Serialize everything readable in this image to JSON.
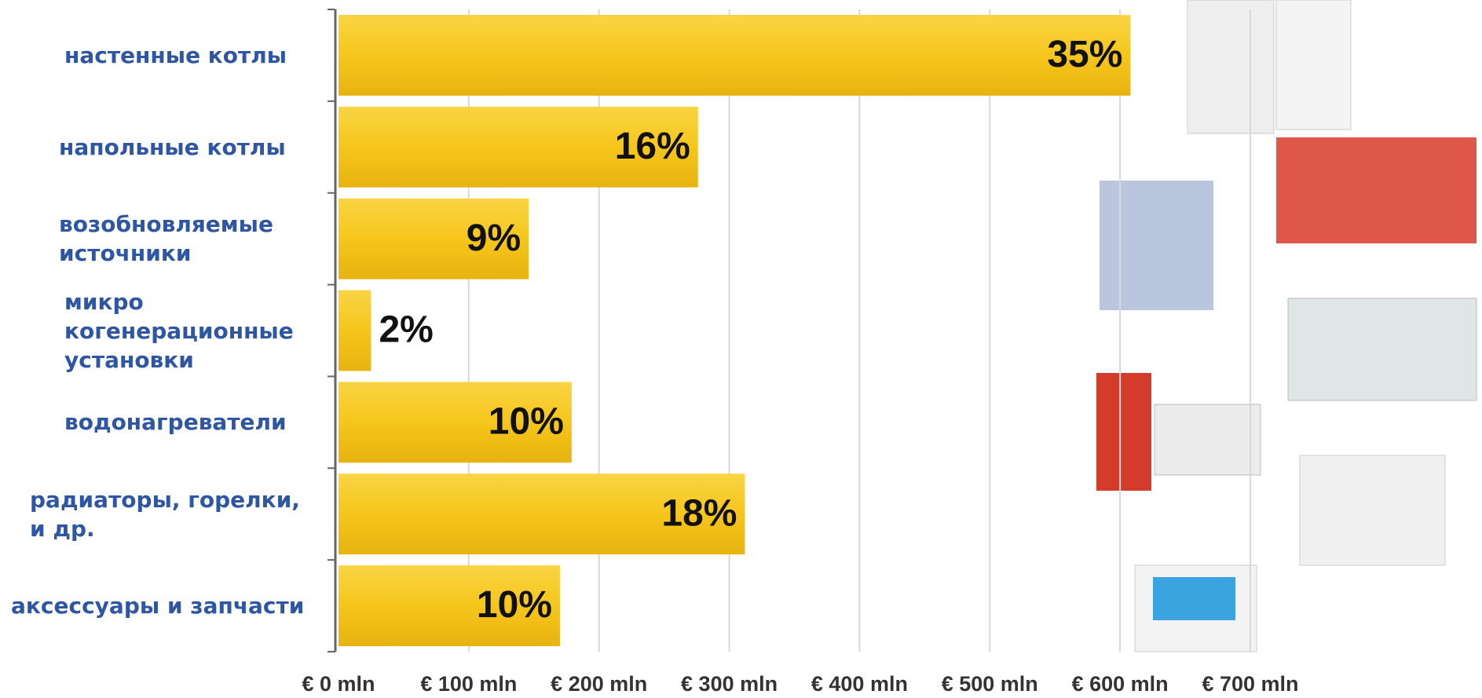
{
  "chart_data": {
    "type": "barh",
    "categories": [
      "настенные котлы",
      "напольные котлы",
      "возобновляемые\nисточники",
      "микро\nкогенерационные\nустановки",
      "водонагреватели",
      "радиаторы, горелки,\nи др.",
      "аксессуары и запчасти"
    ],
    "values": [
      608,
      276,
      146,
      25,
      179,
      312,
      170
    ],
    "shares": [
      35,
      16,
      9,
      2,
      10,
      18,
      10
    ],
    "share_labels": [
      "35%",
      "16%",
      "9%",
      "2%",
      "10%",
      "18%",
      "10%"
    ],
    "color": "#f6c61c",
    "xlim": [
      0,
      700
    ],
    "xticks": [
      {
        "value": 0,
        "label": "€ 0 mln"
      },
      {
        "value": 100,
        "label": "€ 100 mln"
      },
      {
        "value": 200,
        "label": "€ 200 mln"
      },
      {
        "value": 300,
        "label": "€ 300 mln"
      },
      {
        "value": 400,
        "label": "€ 400 mln"
      },
      {
        "value": 500,
        "label": "€ 500 mln"
      },
      {
        "value": 600,
        "label": "€ 600 mln"
      },
      {
        "value": 700,
        "label": "€ 700 mln"
      }
    ],
    "grid": true
  }
}
